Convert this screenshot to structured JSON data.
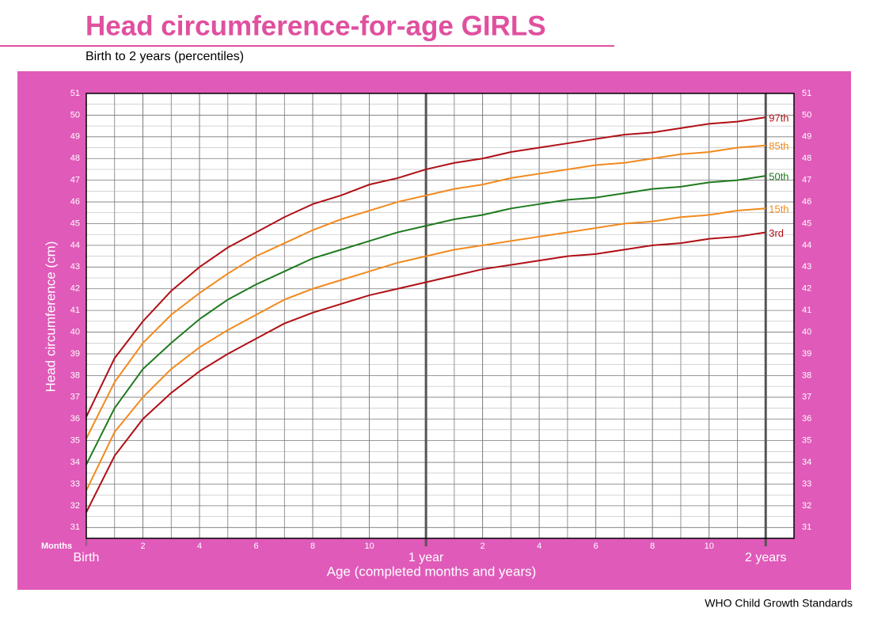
{
  "chart_data": {
    "type": "line",
    "title": "Head circumference-for-age  GIRLS",
    "subtitle": "Birth to 2 years (percentiles)",
    "y_label": "Head circumference (cm)",
    "x_label": "Age (completed months and years)",
    "x_unit_label": "Months",
    "source": "WHO Child Growth Standards",
    "x": [
      0,
      1,
      2,
      3,
      4,
      5,
      6,
      7,
      8,
      9,
      10,
      11,
      12,
      13,
      14,
      15,
      16,
      17,
      18,
      19,
      20,
      21,
      22,
      23,
      24
    ],
    "series": [
      {
        "name": "97th",
        "color": "#b01016",
        "values": [
          36.1,
          38.8,
          40.5,
          41.9,
          43.0,
          43.9,
          44.6,
          45.3,
          45.9,
          46.3,
          46.8,
          47.1,
          47.5,
          47.8,
          48.0,
          48.3,
          48.5,
          48.7,
          48.9,
          49.1,
          49.2,
          49.4,
          49.6,
          49.7,
          49.9
        ]
      },
      {
        "name": "85th",
        "color": "#f28a1e",
        "values": [
          35.1,
          37.7,
          39.5,
          40.8,
          41.8,
          42.7,
          43.5,
          44.1,
          44.7,
          45.2,
          45.6,
          46.0,
          46.3,
          46.6,
          46.8,
          47.1,
          47.3,
          47.5,
          47.7,
          47.8,
          48.0,
          48.2,
          48.3,
          48.5,
          48.6
        ]
      },
      {
        "name": "50th",
        "color": "#1f7a1f",
        "values": [
          33.9,
          36.5,
          38.3,
          39.5,
          40.6,
          41.5,
          42.2,
          42.8,
          43.4,
          43.8,
          44.2,
          44.6,
          44.9,
          45.2,
          45.4,
          45.7,
          45.9,
          46.1,
          46.2,
          46.4,
          46.6,
          46.7,
          46.9,
          47.0,
          47.2
        ]
      },
      {
        "name": "15th",
        "color": "#f28a1e",
        "values": [
          32.7,
          35.4,
          37.0,
          38.3,
          39.3,
          40.1,
          40.8,
          41.5,
          42.0,
          42.4,
          42.8,
          43.2,
          43.5,
          43.8,
          44.0,
          44.2,
          44.4,
          44.6,
          44.8,
          45.0,
          45.1,
          45.3,
          45.4,
          45.6,
          45.7
        ]
      },
      {
        "name": "3rd",
        "color": "#b01016",
        "values": [
          31.7,
          34.3,
          36.0,
          37.2,
          38.2,
          39.0,
          39.7,
          40.4,
          40.9,
          41.3,
          41.7,
          42.0,
          42.3,
          42.6,
          42.9,
          43.1,
          43.3,
          43.5,
          43.6,
          43.8,
          44.0,
          44.1,
          44.3,
          44.4,
          44.6
        ]
      }
    ],
    "xlim": [
      0,
      25
    ],
    "xticks": [
      {
        "value": 0,
        "label": "Birth"
      },
      2,
      4,
      6,
      8,
      10,
      {
        "value": 12,
        "label": "1 year"
      },
      {
        "value": 14,
        "label": "2"
      },
      {
        "value": 16,
        "label": "4"
      },
      {
        "value": 18,
        "label": "6"
      },
      {
        "value": 20,
        "label": "8"
      },
      {
        "value": 22,
        "label": "10"
      },
      {
        "value": 24,
        "label": "2 years"
      }
    ],
    "ylim": [
      30.5,
      51
    ],
    "yticks": [
      31,
      32,
      33,
      34,
      35,
      36,
      37,
      38,
      39,
      40,
      41,
      42,
      43,
      44,
      45,
      46,
      47,
      48,
      49,
      50,
      51
    ],
    "grid": true
  }
}
